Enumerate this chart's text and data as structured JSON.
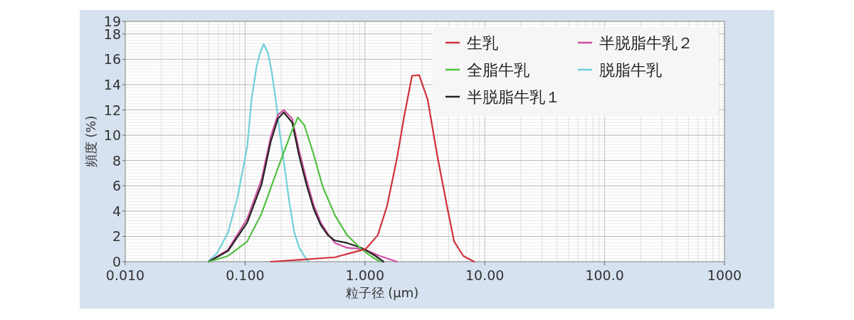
{
  "chart_data": {
    "type": "line",
    "xlabel": "粒子径 (µm)",
    "ylabel": "頻度 (%)",
    "log": "x",
    "xlim": [
      0.01,
      1000
    ],
    "xticks": [
      {
        "value": 0.01,
        "label": "0.010"
      },
      {
        "value": 0.1,
        "label": "0.100"
      },
      {
        "value": 1,
        "label": "1.000"
      },
      {
        "value": 10,
        "label": "10.00"
      },
      {
        "value": 100,
        "label": "100.0"
      },
      {
        "value": 1000,
        "label": "1000"
      }
    ],
    "ylim": [
      0,
      19
    ],
    "yticks": [
      0,
      2,
      4,
      6,
      8,
      10,
      12,
      14,
      16,
      18,
      19
    ],
    "grid": true,
    "legend": "top right",
    "marker": "none",
    "line_style": "solid",
    "series": [
      {
        "name": "生乳",
        "color": "#d0303a",
        "x": [
          0.1638,
          0.2835,
          0.5623,
          0.884,
          1.014,
          1.28,
          1.529,
          1.853,
          2.125,
          2.471,
          2.835,
          3.341,
          3.993,
          4.836,
          5.546,
          6.628,
          8.143
        ],
        "values": [
          0,
          0.15,
          0.35,
          0.85,
          1.0,
          2.1,
          4.4,
          8.2,
          11.5,
          14.7,
          14.75,
          12.8,
          8.5,
          4.4,
          1.6,
          0.45,
          0
        ]
      },
      {
        "name": "全脂牛乳",
        "color": "#50c040",
        "x": [
          0.0497,
          0.072,
          0.1042,
          0.1371,
          0.1878,
          0.2471,
          0.2757,
          0.3119,
          0.3727,
          0.4455,
          0.5623,
          0.7098,
          0.9337,
          1.116,
          1.334
        ],
        "values": [
          0,
          0.45,
          1.6,
          3.8,
          7.4,
          10.4,
          11.4,
          10.8,
          8.5,
          5.9,
          3.66,
          2.1,
          1.0,
          0.45,
          0
        ]
      },
      {
        "name": "半脱脂牛乳１",
        "color": "#222222",
        "x": [
          0.0497,
          0.072,
          0.1042,
          0.1371,
          0.1638,
          0.1878,
          0.21,
          0.2471,
          0.2835,
          0.325,
          0.3727,
          0.4276,
          0.4903,
          0.5623,
          0.7098,
          0.9337,
          1.014,
          1.228,
          1.428
        ],
        "values": [
          0,
          0.85,
          3.1,
          6.1,
          9.5,
          11.3,
          11.8,
          11.0,
          8.3,
          6.1,
          4.2,
          2.9,
          2.1,
          1.67,
          1.48,
          1.1,
          0.92,
          0.45,
          0
        ]
      },
      {
        "name": "半脱脂牛乳２",
        "color": "#d050a0",
        "x": [
          0.0497,
          0.072,
          0.1042,
          0.1371,
          0.1638,
          0.1878,
          0.21,
          0.2471,
          0.2835,
          0.325,
          0.3727,
          0.4276,
          0.4903,
          0.5623,
          0.7098,
          0.9337,
          1.014,
          1.334,
          1.853
        ],
        "values": [
          0,
          0.95,
          3.4,
          6.5,
          9.9,
          11.6,
          12.0,
          11.3,
          8.7,
          6.5,
          4.5,
          3.1,
          2.2,
          1.48,
          1.1,
          1.0,
          0.92,
          0.45,
          0
        ]
      },
      {
        "name": "脱脂牛乳",
        "color": "#70d0d8",
        "x": [
          0.049,
          0.0586,
          0.072,
          0.086,
          0.1042,
          0.1131,
          0.1245,
          0.1334,
          0.1428,
          0.1551,
          0.1661,
          0.1803,
          0.1957,
          0.2154,
          0.2339,
          0.2574,
          0.2835,
          0.3119,
          0.3387
        ],
        "values": [
          0,
          0.7,
          2.3,
          5.0,
          9.1,
          12.8,
          15.4,
          16.5,
          17.2,
          16.5,
          15.1,
          12.8,
          10.0,
          7.2,
          4.7,
          2.3,
          1.1,
          0.45,
          0
        ]
      }
    ]
  }
}
